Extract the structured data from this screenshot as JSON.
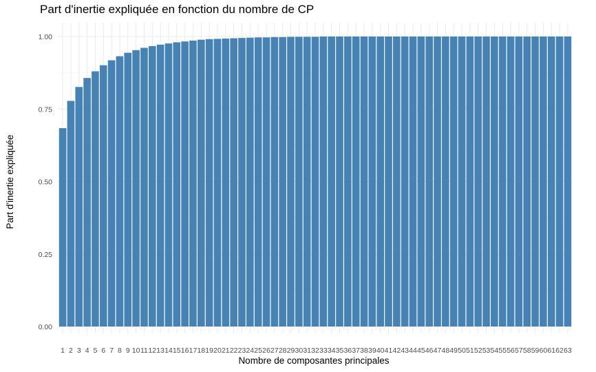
{
  "chart_data": {
    "type": "bar",
    "title": "Part d'inertie expliquée en fonction du nombre de CP",
    "xlabel": "Nombre de composantes principales",
    "ylabel": "Part d'inertie expliquée",
    "bar_color": "#4682B4",
    "grid": true,
    "ylim": [
      0,
      1.05
    ],
    "yticks": [
      0.0,
      0.25,
      0.5,
      0.75,
      1.0
    ],
    "ytick_labels": [
      "0.00",
      "0.25",
      "0.50",
      "0.75",
      "1.00"
    ],
    "categories": [
      "1",
      "2",
      "3",
      "4",
      "5",
      "6",
      "7",
      "8",
      "9",
      "10",
      "11",
      "12",
      "13",
      "14",
      "15",
      "16",
      "17",
      "18",
      "19",
      "20",
      "21",
      "22",
      "23",
      "24",
      "25",
      "26",
      "27",
      "28",
      "29",
      "30",
      "31",
      "32",
      "33",
      "34",
      "35",
      "36",
      "37",
      "38",
      "39",
      "40",
      "41",
      "42",
      "43",
      "44",
      "45",
      "46",
      "47",
      "48",
      "49",
      "50",
      "51",
      "52",
      "53",
      "54",
      "55",
      "56",
      "57",
      "58",
      "59",
      "60",
      "61",
      "62",
      "63"
    ],
    "values": [
      0.684,
      0.778,
      0.826,
      0.857,
      0.88,
      0.901,
      0.918,
      0.932,
      0.944,
      0.953,
      0.961,
      0.967,
      0.972,
      0.976,
      0.98,
      0.983,
      0.986,
      0.989,
      0.991,
      0.992,
      0.993,
      0.994,
      0.995,
      0.996,
      0.997,
      0.997,
      0.998,
      0.998,
      0.999,
      0.999,
      0.999,
      0.999,
      1.0,
      1.0,
      1.0,
      1.0,
      1.0,
      1.0,
      1.0,
      1.0,
      1.0,
      1.0,
      1.0,
      1.0,
      1.0,
      1.0,
      1.0,
      1.0,
      1.0,
      1.0,
      1.0,
      1.0,
      1.0,
      1.0,
      1.0,
      1.0,
      1.0,
      1.0,
      1.0,
      1.0,
      1.0,
      1.0,
      1.0
    ]
  }
}
